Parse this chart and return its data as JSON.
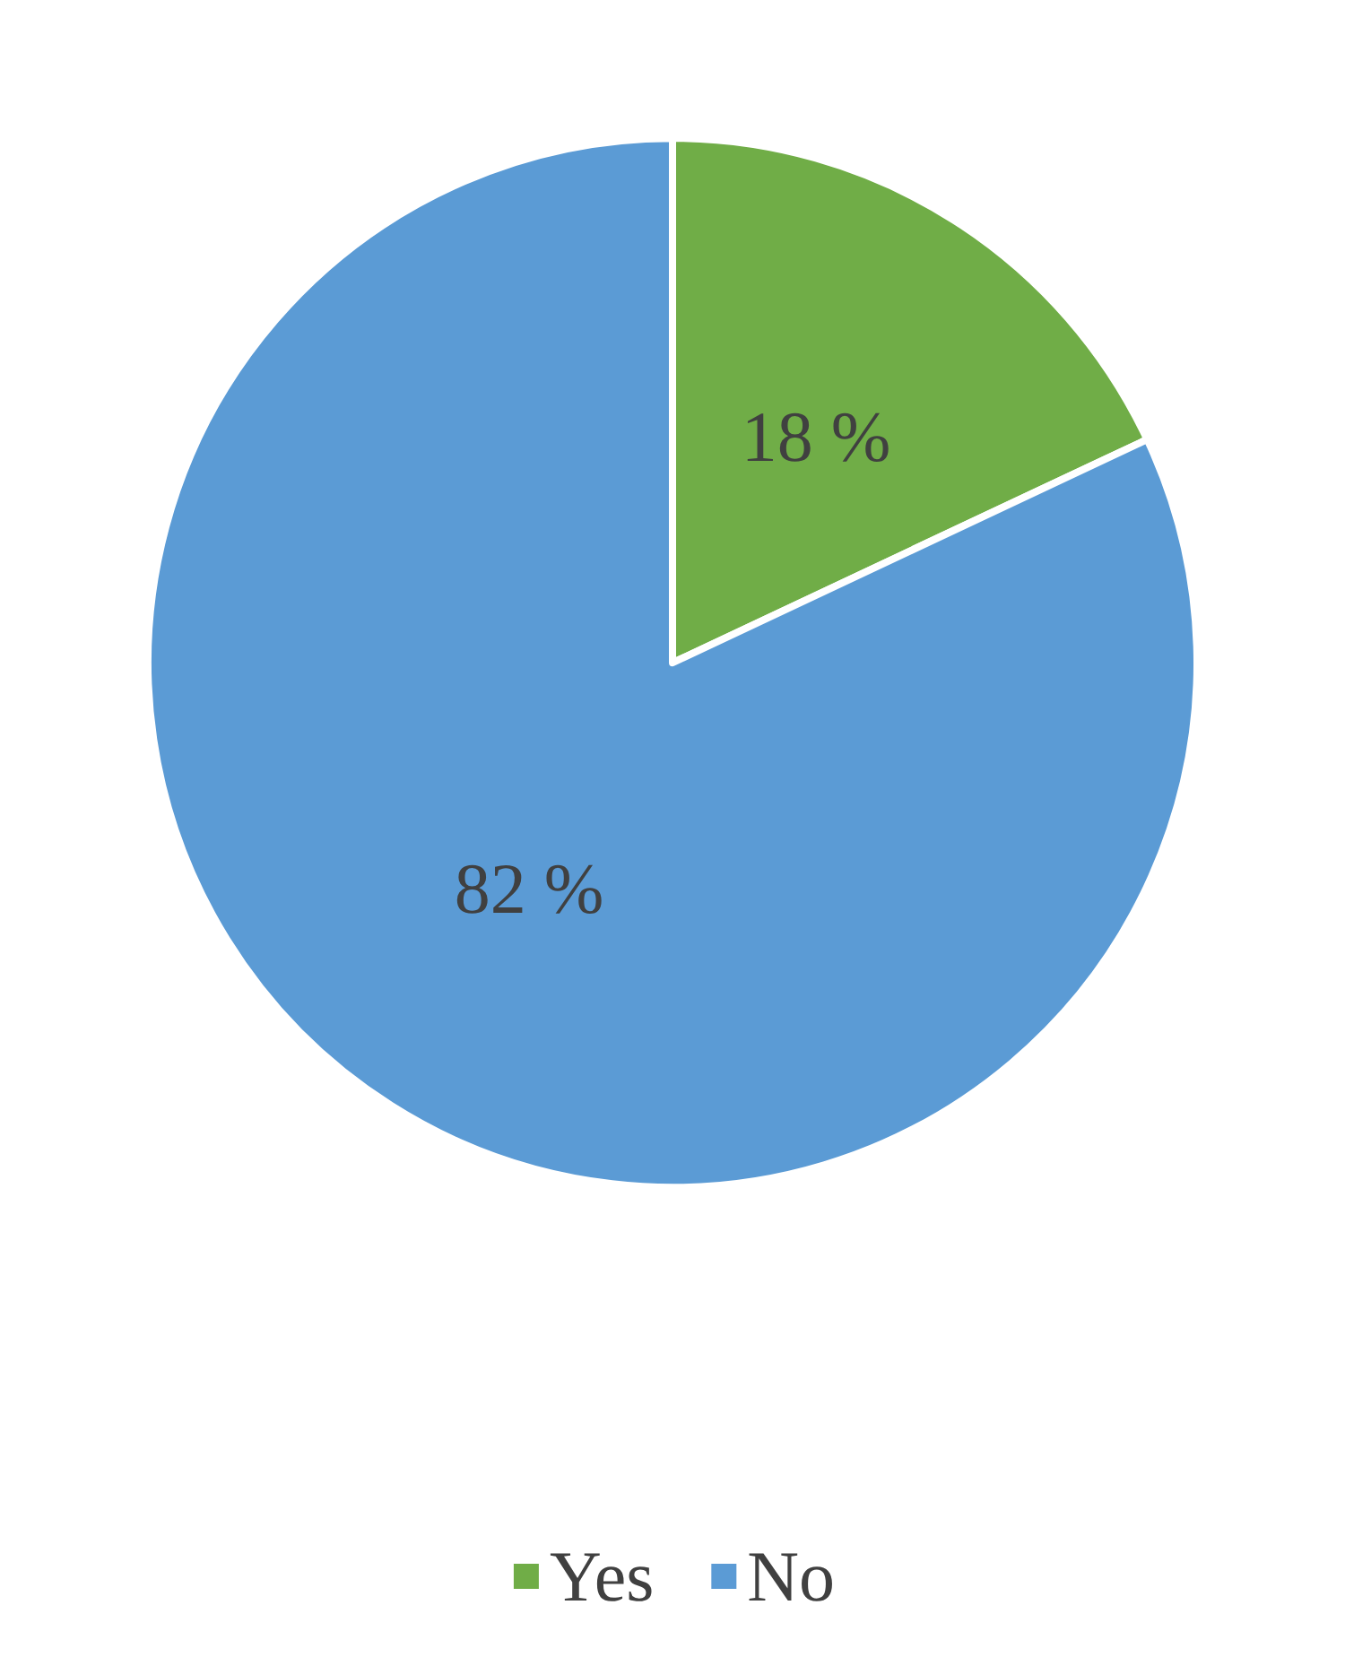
{
  "chart_data": {
    "type": "pie",
    "categories": [
      "Yes",
      "No"
    ],
    "values": [
      18,
      82
    ],
    "colors": [
      "#70ad47",
      "#5b9bd5"
    ],
    "value_labels": [
      "18 %",
      "82 %"
    ],
    "legend": "bottom"
  }
}
